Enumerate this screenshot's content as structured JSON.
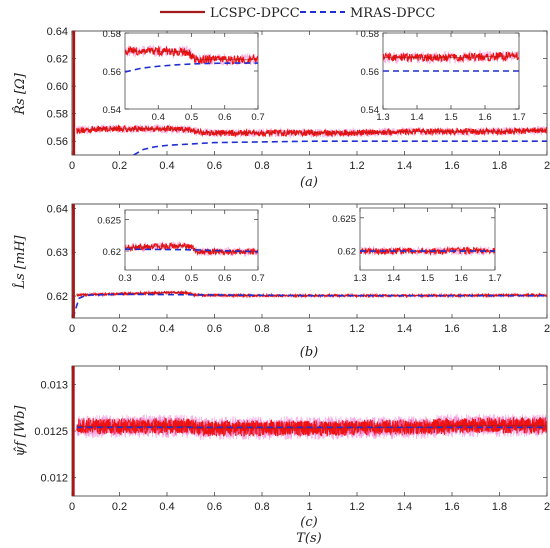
{
  "legend": {
    "items": [
      {
        "label": "LCSPC-DPCC",
        "color": "#a51b1b",
        "style": "solid"
      },
      {
        "label": "MRAS-DPCC",
        "color": "#1f2fd1",
        "style": "dashed"
      }
    ]
  },
  "chart_data": [
    {
      "type": "line",
      "ylabel": "R̂s [Ω]",
      "subplot_label": "(a)",
      "xlim": [
        0,
        2
      ],
      "ylim": [
        0.55,
        0.64
      ],
      "xticks": [
        "0",
        "0.2",
        "0.4",
        "0.6",
        "0.8",
        "1",
        "1.2",
        "1.4",
        "1.6",
        "1.8",
        "2"
      ],
      "yticks": [
        "0.56",
        "0.58",
        "0.60",
        "0.62",
        "0.64"
      ],
      "series": [
        {
          "name": "LCSPC-DPCC",
          "x": [
            0.02,
            0.05,
            0.1,
            0.2,
            0.3,
            0.4,
            0.5,
            0.52,
            0.6,
            0.8,
            1.0,
            1.2,
            1.4,
            1.6,
            1.8,
            2.0
          ],
          "y": [
            0.568,
            0.568,
            0.569,
            0.569,
            0.569,
            0.569,
            0.568,
            0.567,
            0.566,
            0.566,
            0.566,
            0.566,
            0.567,
            0.567,
            0.567,
            0.568
          ]
        },
        {
          "name": "MRAS-DPCC",
          "x": [
            0.26,
            0.3,
            0.35,
            0.4,
            0.5,
            0.6,
            0.8,
            1.0,
            1.2,
            1.4,
            1.6,
            1.8,
            2.0
          ],
          "y": [
            0.55,
            0.554,
            0.556,
            0.557,
            0.558,
            0.559,
            0.5595,
            0.56,
            0.56,
            0.56,
            0.56,
            0.56,
            0.56
          ]
        }
      ],
      "insets": [
        {
          "xlim": [
            0.3,
            0.7
          ],
          "ylim": [
            0.54,
            0.58
          ],
          "xticks": [
            "0.4",
            "0.5",
            "0.6",
            "0.7"
          ],
          "yticks": [
            "0.54",
            "0.56",
            "0.58"
          ],
          "series": [
            {
              "name": "LCSPC-DPCC",
              "x": [
                0.3,
                0.4,
                0.49,
                0.51,
                0.6,
                0.7
              ],
              "y": [
                0.5705,
                0.5705,
                0.57,
                0.566,
                0.566,
                0.566
              ]
            },
            {
              "name": "MRAS-DPCC",
              "x": [
                0.3,
                0.35,
                0.4,
                0.45,
                0.5,
                0.55,
                0.6,
                0.65,
                0.7
              ],
              "y": [
                0.5595,
                0.5615,
                0.5625,
                0.5632,
                0.5637,
                0.564,
                0.5641,
                0.5642,
                0.5642
              ]
            }
          ]
        },
        {
          "xlim": [
            1.3,
            1.7
          ],
          "ylim": [
            0.54,
            0.58
          ],
          "xticks": [
            "1.3",
            "1.4",
            "1.5",
            "1.6",
            "1.7"
          ],
          "yticks": [
            "0.54",
            "0.56",
            "0.58"
          ],
          "series": [
            {
              "name": "LCSPC-DPCC",
              "x": [
                1.3,
                1.5,
                1.7
              ],
              "y": [
                0.567,
                0.567,
                0.568
              ]
            },
            {
              "name": "MRAS-DPCC",
              "x": [
                1.3,
                1.5,
                1.7
              ],
              "y": [
                0.56,
                0.56,
                0.56
              ]
            }
          ]
        }
      ]
    },
    {
      "type": "line",
      "ylabel": "L̂s [mH]",
      "subplot_label": "(b)",
      "xlim": [
        0,
        2
      ],
      "ylim": [
        0.615,
        0.641
      ],
      "xticks": [
        "0",
        "0.2",
        "0.4",
        "0.6",
        "0.8",
        "1",
        "1.2",
        "1.4",
        "1.6",
        "1.8",
        "2"
      ],
      "yticks": [
        "0.62",
        "0.63",
        "0.64"
      ],
      "series": [
        {
          "name": "LCSPC-DPCC",
          "x": [
            0.02,
            0.05,
            0.2,
            0.4,
            0.48,
            0.5,
            0.52,
            0.8,
            1.0,
            1.2,
            1.4,
            1.6,
            1.8,
            2.0
          ],
          "y": [
            0.6202,
            0.6203,
            0.6205,
            0.6208,
            0.6208,
            0.6205,
            0.6202,
            0.6201,
            0.6201,
            0.6201,
            0.6201,
            0.6201,
            0.6202,
            0.6202
          ]
        },
        {
          "name": "MRAS-DPCC",
          "x": [
            0.005,
            0.015,
            0.03,
            0.06,
            0.2,
            0.5,
            1.0,
            1.5,
            2.0
          ],
          "y": [
            0.615,
            0.617,
            0.6195,
            0.6202,
            0.6204,
            0.6203,
            0.6201,
            0.6201,
            0.6201
          ]
        }
      ],
      "insets": [
        {
          "xlim": [
            0.3,
            0.7
          ],
          "ylim": [
            0.617,
            0.6265
          ],
          "xticks": [
            "0.3",
            "0.4",
            "0.5",
            "0.6",
            "0.7"
          ],
          "yticks": [
            "0.62",
            "0.625"
          ],
          "series": [
            {
              "name": "LCSPC-DPCC",
              "x": [
                0.3,
                0.4,
                0.48,
                0.5,
                0.52,
                0.6,
                0.7
              ],
              "y": [
                0.6205,
                0.6208,
                0.6208,
                0.6205,
                0.6199,
                0.6199,
                0.6199
              ]
            },
            {
              "name": "MRAS-DPCC",
              "x": [
                0.3,
                0.5,
                0.7
              ],
              "y": [
                0.6203,
                0.6202,
                0.6199
              ]
            }
          ]
        },
        {
          "xlim": [
            1.3,
            1.7
          ],
          "ylim": [
            0.617,
            0.6265
          ],
          "xticks": [
            "1.3",
            "1.4",
            "1.5",
            "1.6",
            "1.7"
          ],
          "yticks": [
            "0.62",
            "0.625"
          ],
          "series": [
            {
              "name": "LCSPC-DPCC",
              "x": [
                1.3,
                1.5,
                1.7
              ],
              "y": [
                0.6199,
                0.6199,
                0.62
              ]
            },
            {
              "name": "MRAS-DPCC",
              "x": [
                1.3,
                1.5,
                1.7
              ],
              "y": [
                0.6199,
                0.6199,
                0.6199
              ]
            }
          ]
        }
      ]
    },
    {
      "type": "line",
      "ylabel": "ψ̂f [Wb]",
      "subplot_label": "(c)",
      "xlabel": "T(s)",
      "xlim": [
        0,
        2
      ],
      "ylim": [
        0.0118,
        0.0132
      ],
      "xticks": [
        "0",
        "0.2",
        "0.4",
        "0.6",
        "0.8",
        "1",
        "1.2",
        "1.4",
        "1.6",
        "1.8",
        "2"
      ],
      "yticks": [
        "0.012",
        "0.0125",
        "0.013"
      ],
      "series": [
        {
          "name": "LCSPC-DPCC",
          "x": [
            0.02,
            0.5,
            0.52,
            1.0,
            1.5,
            1.6,
            2.0
          ],
          "y": [
            0.01255,
            0.01255,
            0.01253,
            0.01253,
            0.01254,
            0.01256,
            0.01256
          ]
        },
        {
          "name": "MRAS-DPCC",
          "x": [
            0.02,
            1.0,
            2.0
          ],
          "y": [
            0.01254,
            0.01254,
            0.01254
          ]
        }
      ]
    }
  ]
}
